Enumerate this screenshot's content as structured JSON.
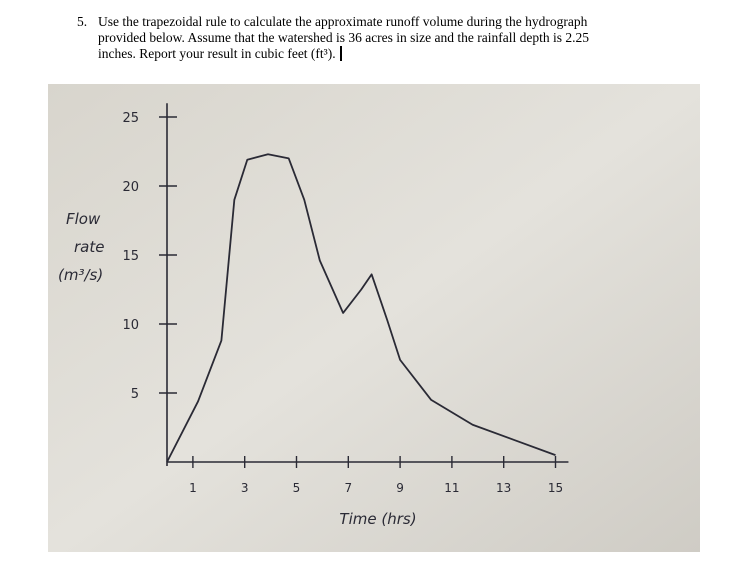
{
  "question": {
    "number": "5.",
    "lines": [
      "Use the trapezoidal rule to calculate the approximate runoff volume during the hydrograph",
      "provided below.  Assume that the watershed is 36 acres in size and the rainfall depth is 2.25",
      "inches.  Report your result in cubic feet (ft³)."
    ]
  },
  "chart_data": {
    "type": "line",
    "ylabel": [
      "Flow",
      "rate",
      "(m³/s)"
    ],
    "xlabel": "Time (hrs)",
    "x": [
      0,
      1.2,
      2.1,
      2.6,
      3.1,
      3.9,
      4.7,
      5.3,
      5.9,
      6.8,
      7.5,
      7.9,
      8.5,
      9,
      10.2,
      11.8,
      13.4,
      15
    ],
    "series": [
      {
        "color": "#2a2a35",
        "values": [
          0,
          4.4,
          8.8,
          19,
          21.9,
          22.3,
          22,
          19,
          14.6,
          10.8,
          12.5,
          13.6,
          10.3,
          7.4,
          4.5,
          2.7,
          1.6,
          0.5
        ]
      }
    ],
    "xlim": [
      0,
      15.5
    ],
    "ylim": [
      0,
      26
    ],
    "xticks": [
      1,
      3,
      5,
      7,
      9,
      11,
      13,
      15
    ],
    "yticks": [
      5,
      10,
      15,
      20,
      25
    ]
  }
}
